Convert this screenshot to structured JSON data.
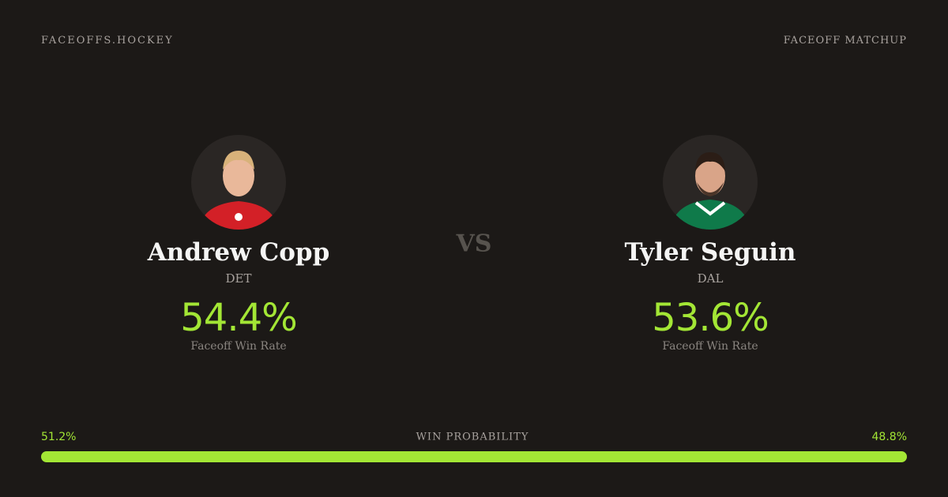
{
  "header": {
    "brand": "FACEOFFS.HOCKEY",
    "label": "FACEOFF MATCHUP"
  },
  "players": [
    {
      "name": "Andrew Copp",
      "team": "DET",
      "win_rate": "54.4%",
      "win_rate_label": "Faceoff Win Rate"
    },
    {
      "name": "Tyler Seguin",
      "team": "DAL",
      "win_rate": "53.6%",
      "win_rate_label": "Faceoff Win Rate"
    }
  ],
  "versus": "VS",
  "win_probability": {
    "title": "WIN PROBABILITY",
    "left": "51.2%",
    "right": "48.8%"
  }
}
